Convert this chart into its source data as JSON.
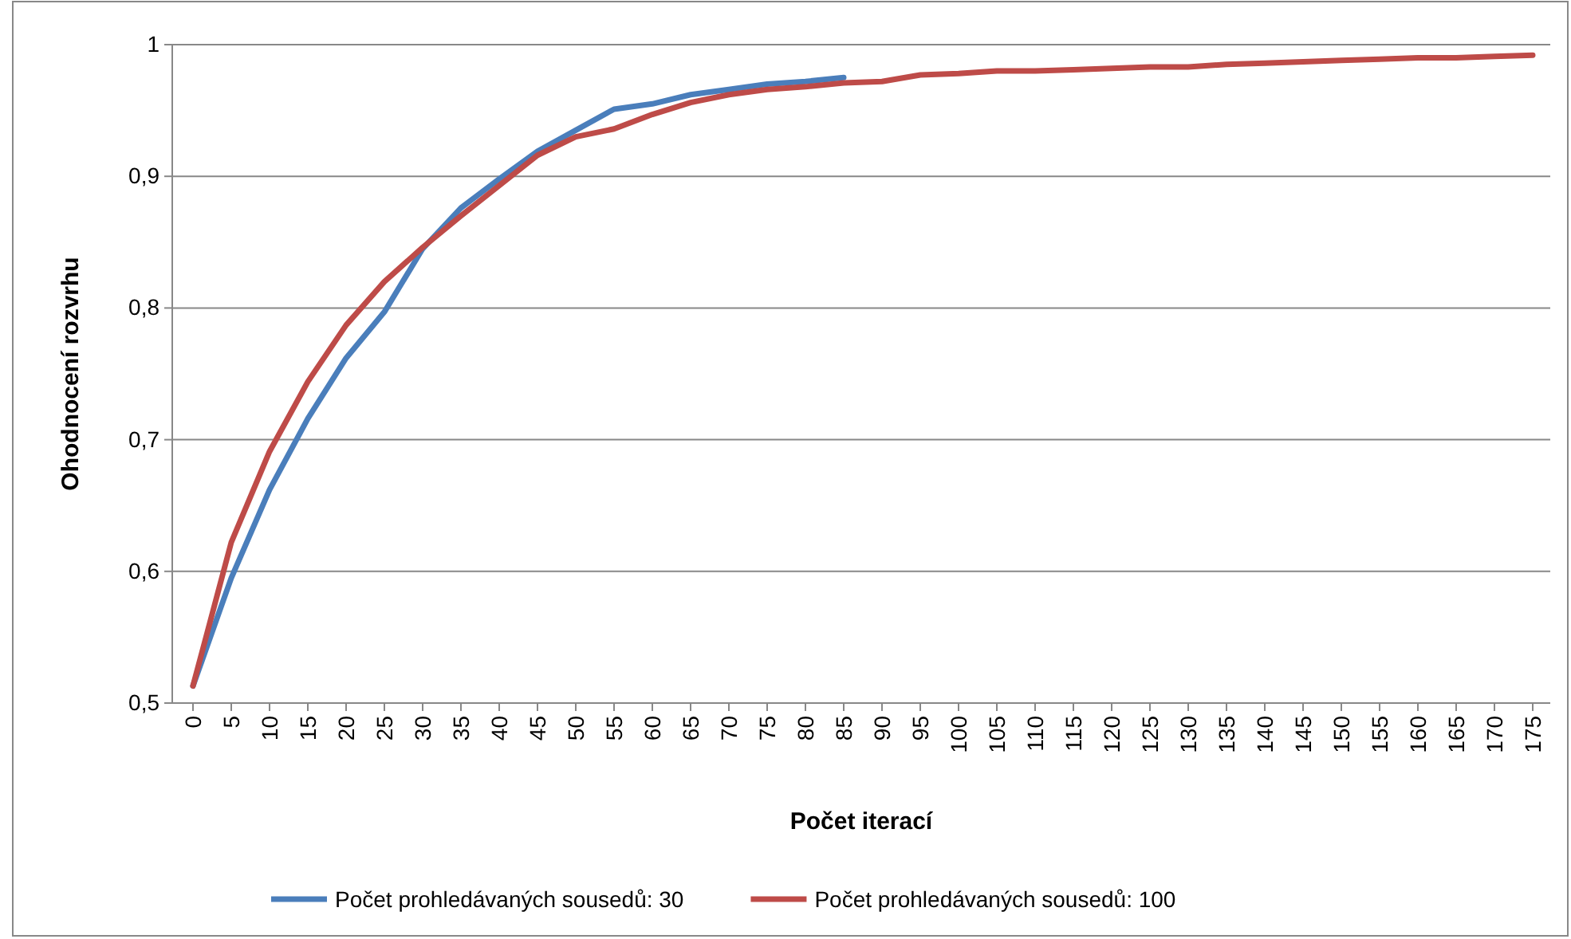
{
  "chart_data": {
    "type": "line",
    "xlabel": "Počet iterací",
    "ylabel": "Ohodnocení rozvrhu",
    "categories": [
      "0",
      "5",
      "10",
      "15",
      "20",
      "25",
      "30",
      "35",
      "40",
      "45",
      "50",
      "55",
      "60",
      "65",
      "70",
      "75",
      "80",
      "85",
      "90",
      "95",
      "100",
      "105",
      "110",
      "115",
      "120",
      "125",
      "130",
      "135",
      "140",
      "145",
      "150",
      "155",
      "160",
      "165",
      "170",
      "175"
    ],
    "series": [
      {
        "name": "Počet prohledávaných sousedů: 30",
        "color": "#4a7ebb",
        "values": [
          0.513,
          0.595,
          0.662,
          0.716,
          0.762,
          0.797,
          0.845,
          0.876,
          0.898,
          0.919,
          0.935,
          0.951,
          0.955,
          0.962,
          0.966,
          0.97,
          0.972,
          0.975,
          null,
          null,
          null,
          null,
          null,
          null,
          null,
          null,
          null,
          null,
          null,
          null,
          null,
          null,
          null,
          null,
          null,
          null
        ]
      },
      {
        "name": "Počet prohledávaných sousedů: 100",
        "color": "#be4b48",
        "values": [
          0.513,
          0.622,
          0.691,
          0.744,
          0.787,
          0.82,
          0.846,
          0.87,
          0.893,
          0.916,
          0.93,
          0.936,
          0.947,
          0.956,
          0.962,
          0.966,
          0.968,
          0.971,
          0.972,
          0.977,
          0.978,
          0.98,
          0.98,
          0.981,
          0.982,
          0.983,
          0.983,
          0.985,
          0.986,
          0.987,
          0.988,
          0.989,
          0.99,
          0.99,
          0.991,
          0.992
        ]
      }
    ],
    "ylim": [
      0.5,
      1
    ],
    "yticks": [
      {
        "value": 0.5,
        "label": "0,5"
      },
      {
        "value": 0.6,
        "label": "0,6"
      },
      {
        "value": 0.7,
        "label": "0,7"
      },
      {
        "value": 0.8,
        "label": "0,8"
      },
      {
        "value": 0.9,
        "label": "0,9"
      },
      {
        "value": 1,
        "label": "1"
      }
    ],
    "grid": "y",
    "legend": "bottom",
    "marker": "none",
    "line_style": "solid"
  }
}
